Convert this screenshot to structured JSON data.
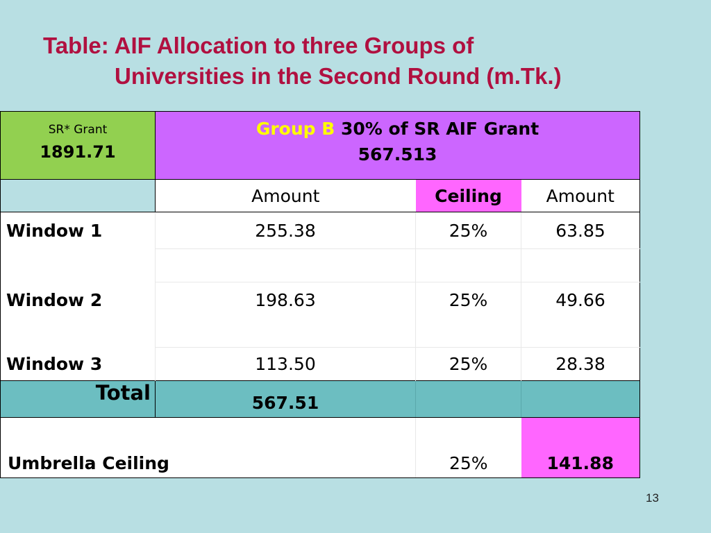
{
  "title": {
    "line1": "Table: AIF Allocation to three Groups of",
    "line2": "Universities in the Second Round (m.Tk.)"
  },
  "table": {
    "sr_label": "SR*  Grant",
    "sr_value": "1891.71",
    "group_name": "Group B",
    "group_desc": " 30% of  SR AIF Grant",
    "group_value": "567.513",
    "headers": {
      "amount": "Amount",
      "ceiling": "Ceiling",
      "amount2": "Amount"
    },
    "rows": [
      {
        "label": "Window 1",
        "amount": "255.38",
        "ceiling": "25%",
        "amount2": "63.85"
      },
      {
        "label": "Window 2",
        "amount": "198.63",
        "ceiling": "25%",
        "amount2": "49.66"
      },
      {
        "label": "Window 3",
        "amount": "113.50",
        "ceiling": "25%",
        "amount2": "28.38"
      }
    ],
    "total": {
      "label": "Total",
      "amount": "567.51"
    },
    "umbrella": {
      "label": "Umbrella Ceiling",
      "ceiling": "25%",
      "amount": "141.88"
    }
  },
  "page_number": "13",
  "colors": {
    "background": "#b8dfe3",
    "title": "#b01040",
    "sr_cell": "#92d050",
    "group_cell": "#cc66ff",
    "group_name": "#ffff00",
    "ceiling_highlight": "#ff66ff",
    "total_row": "#6cbec1"
  }
}
